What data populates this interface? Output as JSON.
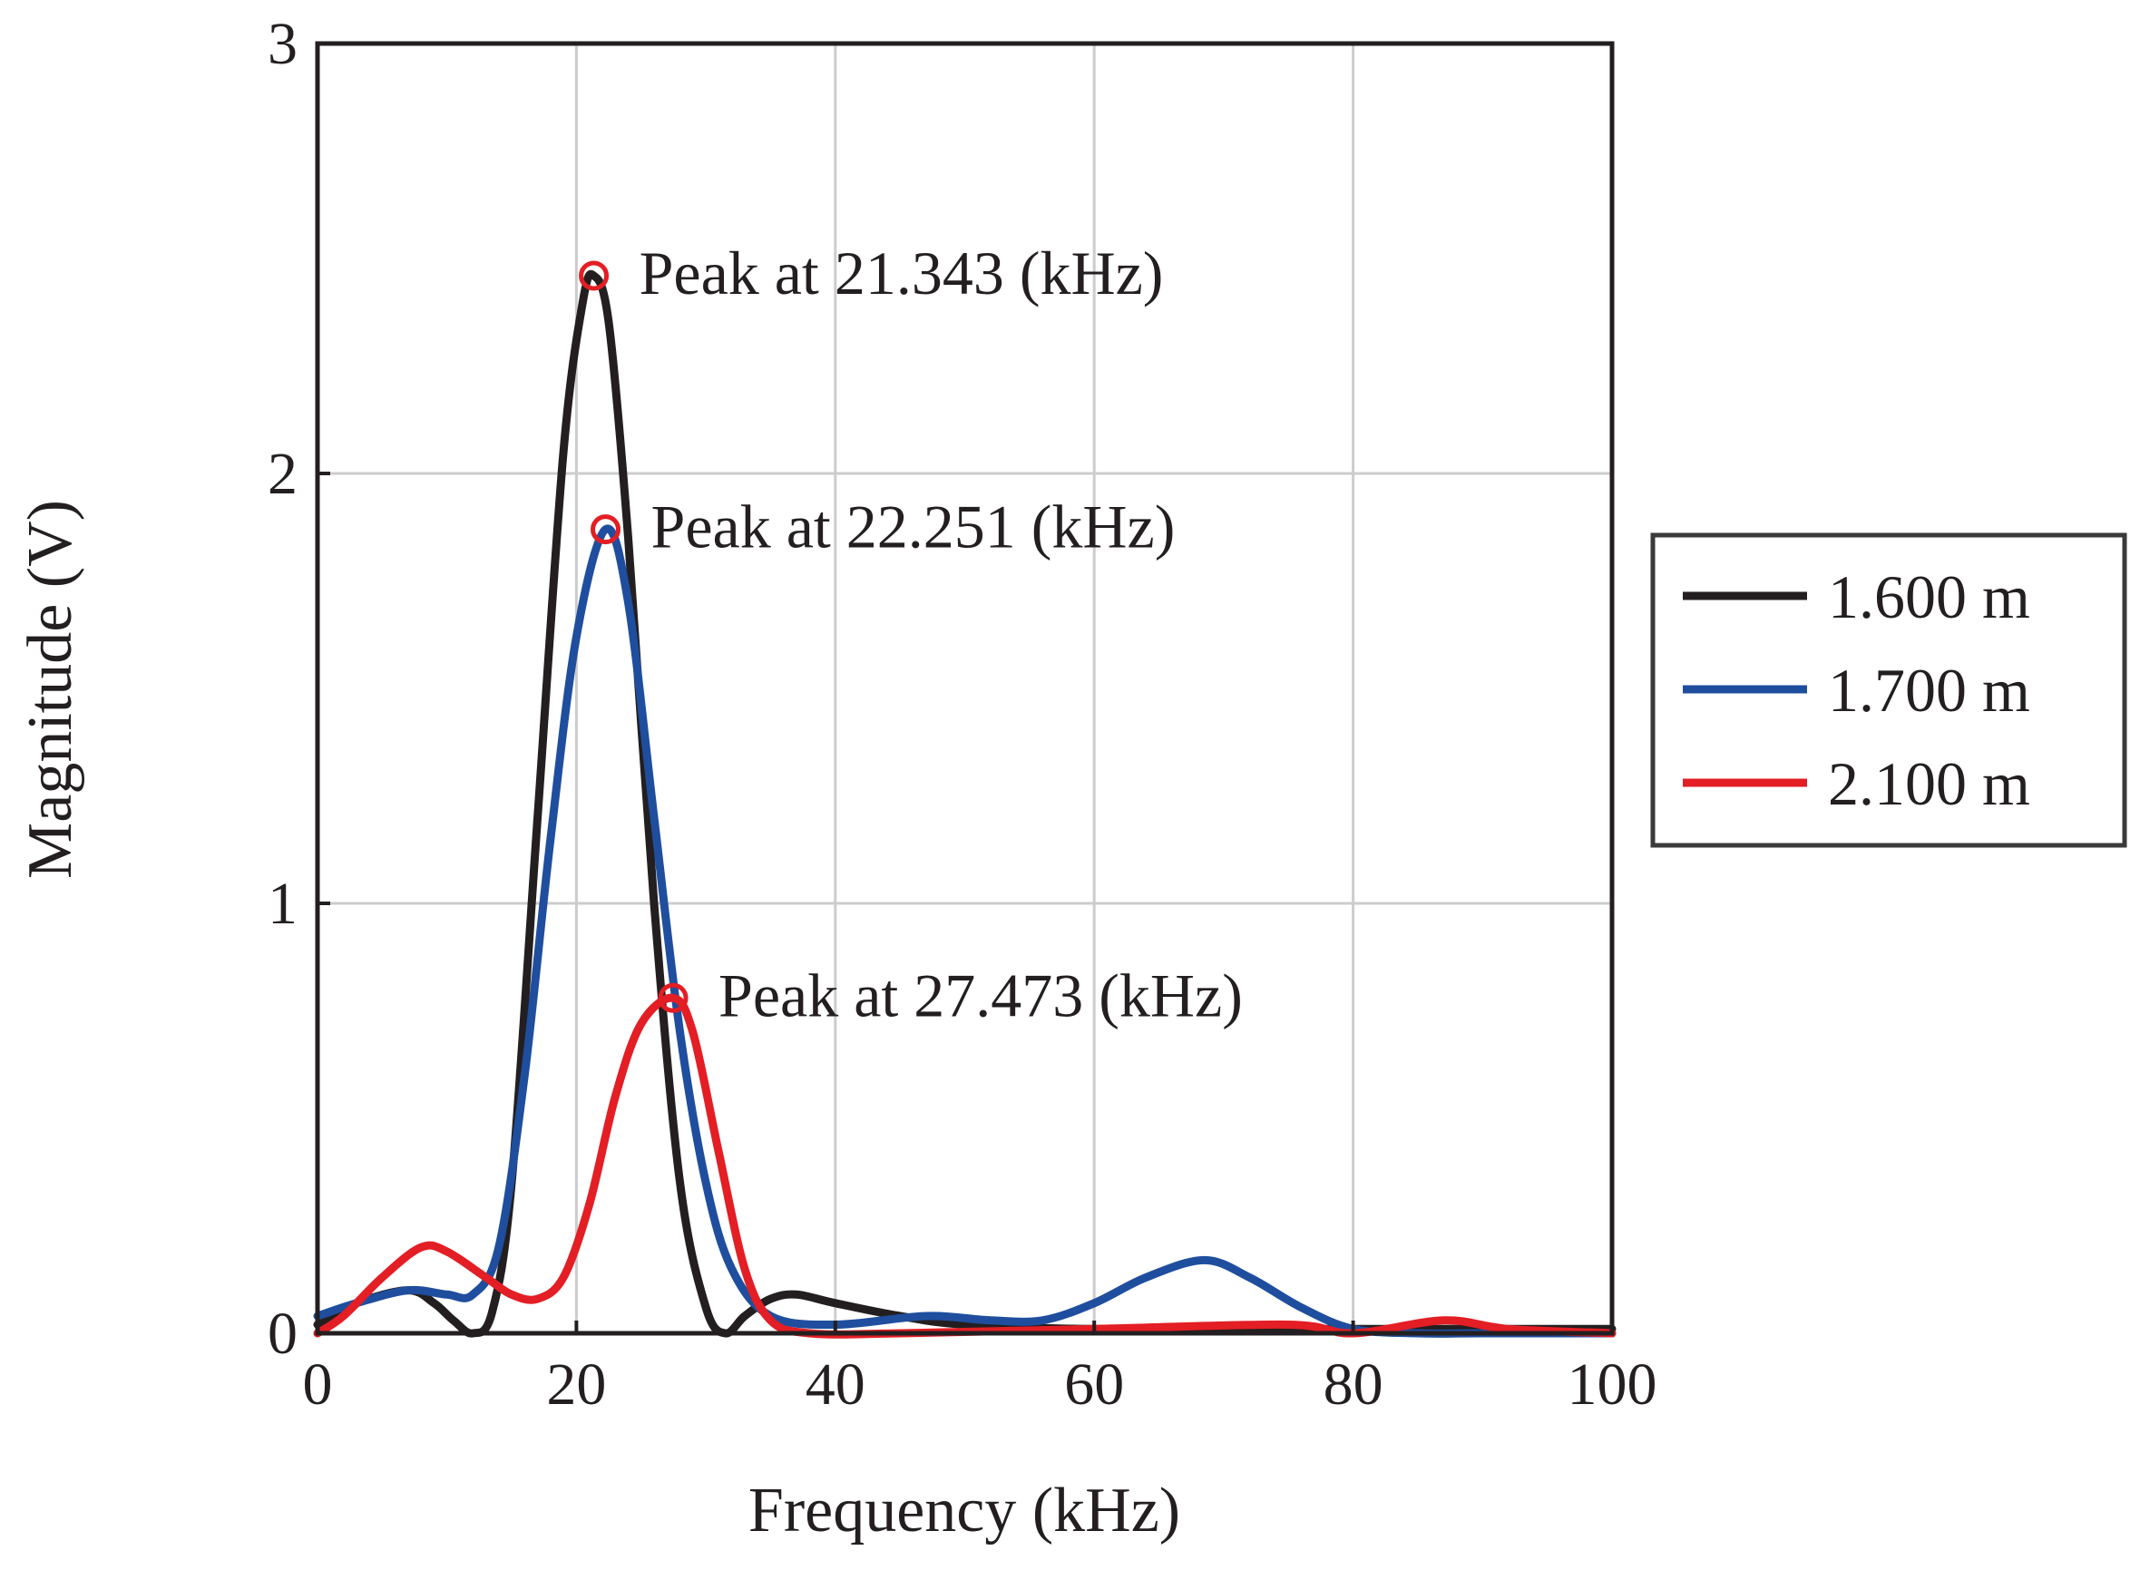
{
  "chart_data": {
    "type": "line",
    "title": "",
    "xlabel": "Frequency (kHz)",
    "ylabel": "Magnitude (V)",
    "xlim": [
      0,
      100
    ],
    "ylim": [
      0,
      3
    ],
    "xticks": [
      0,
      20,
      40,
      60,
      80,
      100
    ],
    "yticks": [
      0,
      1,
      2,
      3
    ],
    "xtick_labels": [
      "0",
      "20",
      "40",
      "60",
      "80",
      "100"
    ],
    "ytick_labels": [
      "0",
      "1",
      "2",
      "3"
    ],
    "grid": true,
    "legend_position": "outside-right",
    "series": [
      {
        "name": "1.600 m",
        "color": "#231f20",
        "x": [
          0,
          3,
          7,
          9,
          10.5,
          12,
          13.5,
          15,
          17,
          19,
          20.5,
          21.343,
          22.5,
          24,
          26,
          28,
          30,
          31.5,
          33,
          35,
          37,
          40,
          45,
          50,
          60,
          80,
          100
        ],
        "y": [
          0.02,
          0.07,
          0.1,
          0.07,
          0.03,
          0.0,
          0.05,
          0.35,
          1.2,
          2.05,
          2.4,
          2.46,
          2.35,
          1.85,
          1.0,
          0.35,
          0.06,
          0.0,
          0.04,
          0.08,
          0.09,
          0.07,
          0.04,
          0.02,
          0.01,
          0.01,
          0.01
        ]
      },
      {
        "name": "1.700 m",
        "color": "#1f4e9e",
        "x": [
          0,
          3,
          7,
          10,
          12,
          14,
          16,
          18,
          20,
          22.251,
          24,
          26,
          28,
          30,
          32,
          35,
          40,
          47,
          52,
          56,
          60,
          64,
          68.5,
          72,
          76,
          80,
          85,
          90,
          100
        ],
        "y": [
          0.04,
          0.07,
          0.1,
          0.09,
          0.09,
          0.2,
          0.6,
          1.15,
          1.62,
          1.87,
          1.7,
          1.2,
          0.7,
          0.35,
          0.15,
          0.04,
          0.02,
          0.04,
          0.03,
          0.03,
          0.07,
          0.13,
          0.17,
          0.13,
          0.06,
          0.01,
          0.0,
          0.0,
          0.0
        ]
      },
      {
        "name": "2.100 m",
        "color": "#e31e24",
        "x": [
          0,
          2,
          5,
          8,
          10,
          13,
          15,
          17,
          19,
          21,
          23,
          25,
          27.473,
          29,
          31,
          33,
          35,
          38,
          45,
          60,
          75,
          80,
          87,
          92,
          100
        ],
        "y": [
          0.0,
          0.04,
          0.13,
          0.2,
          0.19,
          0.13,
          0.09,
          0.08,
          0.13,
          0.3,
          0.55,
          0.72,
          0.78,
          0.7,
          0.42,
          0.15,
          0.03,
          0.0,
          0.0,
          0.01,
          0.02,
          0.0,
          0.03,
          0.01,
          0.0
        ]
      }
    ],
    "markers": [
      {
        "series": "1.600 m",
        "x": 21.343,
        "y": 2.46,
        "color": "#e31e24"
      },
      {
        "series": "1.700 m",
        "x": 22.251,
        "y": 1.87,
        "color": "#e31e24"
      },
      {
        "series": "2.100 m",
        "x": 27.473,
        "y": 0.78,
        "color": "#e31e24"
      }
    ],
    "annotations": [
      {
        "text": "Peak at 21.343 (kHz)",
        "x": 21.343,
        "y": 2.46
      },
      {
        "text": "Peak at 22.251 (kHz)",
        "x": 22.251,
        "y": 1.87
      },
      {
        "text": "Peak at 27.473 (kHz)",
        "x": 27.473,
        "y": 0.78
      }
    ],
    "colors": {
      "axis": "#231f20",
      "grid": "#cccccc",
      "legend_border": "#3a3a3a",
      "marker": "#e31e24"
    }
  }
}
